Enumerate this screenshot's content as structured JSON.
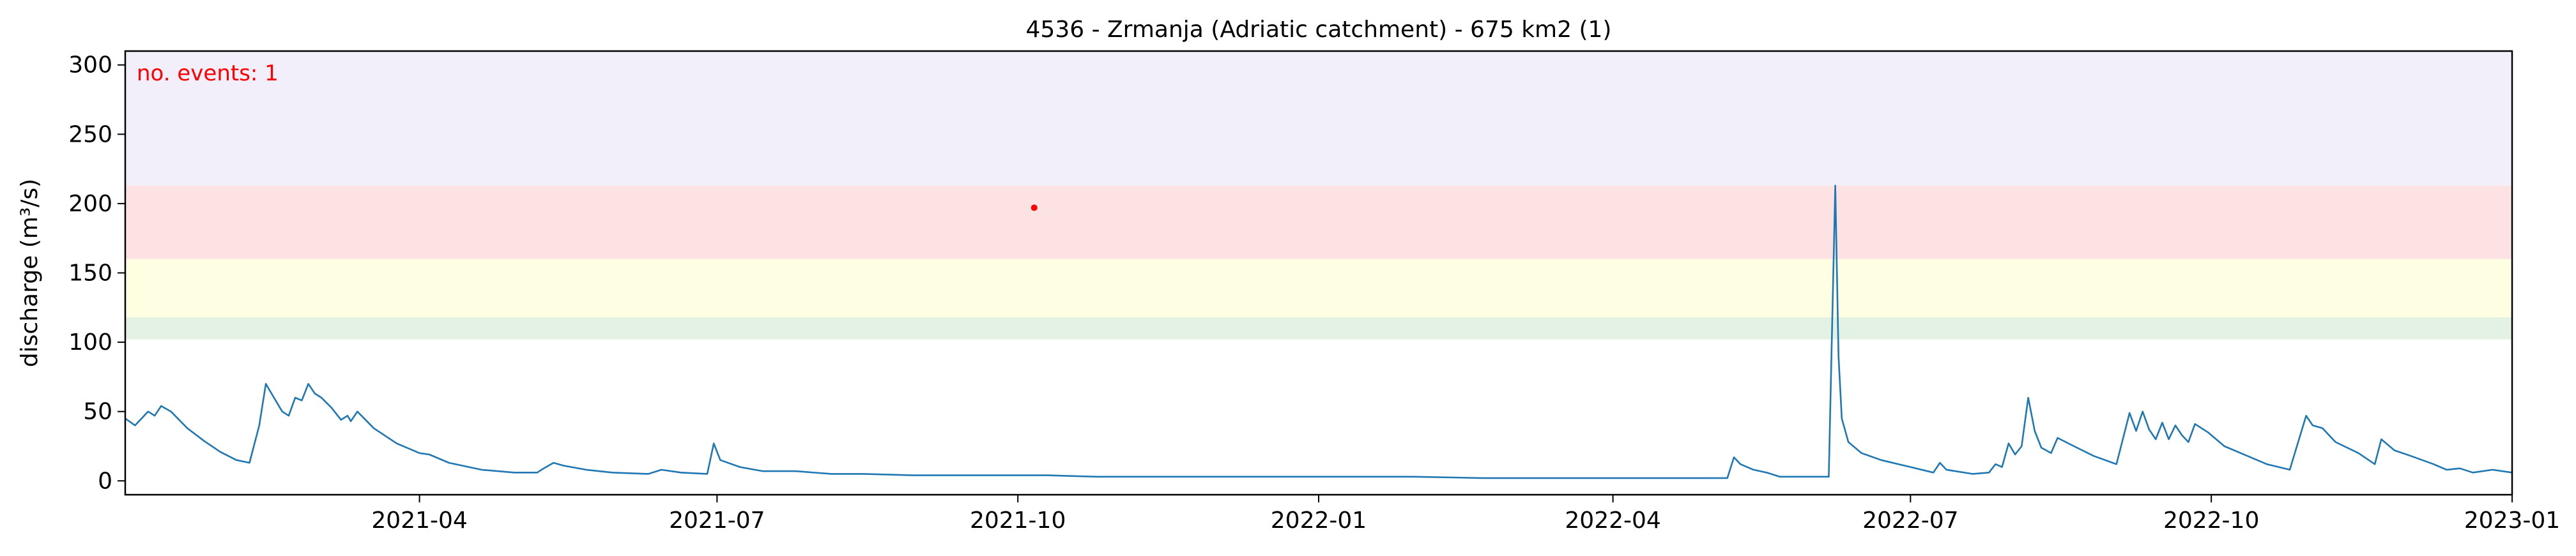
{
  "chart_data": {
    "type": "line",
    "title": "4536 - Zrmanja (Adriatic catchment) - 675 km2 (1)",
    "xlabel": "",
    "ylabel": "discharge (m³/s)",
    "xlim": [
      "2021-01-01",
      "2023-01-01"
    ],
    "ylim": [
      -10,
      310
    ],
    "grid": false,
    "legend": "none",
    "x_ticks": [
      "2021-04-01",
      "2021-07-01",
      "2021-10-01",
      "2022-01-01",
      "2022-04-01",
      "2022-07-01",
      "2022-10-01",
      "2023-01-01"
    ],
    "x_tick_labels": [
      "2021-04",
      "2021-07",
      "2021-10",
      "2022-01",
      "2022-04",
      "2022-07",
      "2022-10",
      "2023-01"
    ],
    "y_ticks": [
      0,
      50,
      100,
      150,
      200,
      250,
      300
    ],
    "y_tick_labels": [
      "0",
      "50",
      "100",
      "150",
      "200",
      "250",
      "300"
    ],
    "threshold_bands": [
      {
        "from": 102,
        "to": 118,
        "color": "#e4f2e4"
      },
      {
        "from": 118,
        "to": 160,
        "color": "#fefee3"
      },
      {
        "from": 160,
        "to": 213,
        "color": "#fde2e4"
      },
      {
        "from": 213,
        "to": 310,
        "color": "#f2eefa"
      }
    ],
    "series": [
      {
        "color": "#1f77b4",
        "points": [
          [
            "2021-01-01",
            45
          ],
          [
            "2021-01-04",
            40
          ],
          [
            "2021-01-08",
            50
          ],
          [
            "2021-01-10",
            47
          ],
          [
            "2021-01-12",
            54
          ],
          [
            "2021-01-15",
            50
          ],
          [
            "2021-01-20",
            38
          ],
          [
            "2021-01-25",
            29
          ],
          [
            "2021-01-30",
            21
          ],
          [
            "2021-02-04",
            15
          ],
          [
            "2021-02-08",
            13
          ],
          [
            "2021-02-11",
            40
          ],
          [
            "2021-02-13",
            70
          ],
          [
            "2021-02-15",
            62
          ],
          [
            "2021-02-18",
            50
          ],
          [
            "2021-02-20",
            47
          ],
          [
            "2021-02-22",
            60
          ],
          [
            "2021-02-24",
            58
          ],
          [
            "2021-02-26",
            70
          ],
          [
            "2021-02-28",
            63
          ],
          [
            "2021-03-02",
            60
          ],
          [
            "2021-03-05",
            53
          ],
          [
            "2021-03-08",
            44
          ],
          [
            "2021-03-10",
            47
          ],
          [
            "2021-03-11",
            43
          ],
          [
            "2021-03-13",
            50
          ],
          [
            "2021-03-18",
            38
          ],
          [
            "2021-03-25",
            27
          ],
          [
            "2021-04-01",
            20
          ],
          [
            "2021-04-04",
            19
          ],
          [
            "2021-04-10",
            13
          ],
          [
            "2021-04-20",
            8
          ],
          [
            "2021-04-30",
            6
          ],
          [
            "2021-05-07",
            6
          ],
          [
            "2021-05-09",
            9
          ],
          [
            "2021-05-12",
            13
          ],
          [
            "2021-05-15",
            11
          ],
          [
            "2021-05-22",
            8
          ],
          [
            "2021-05-30",
            6
          ],
          [
            "2021-06-10",
            5
          ],
          [
            "2021-06-14",
            8
          ],
          [
            "2021-06-20",
            6
          ],
          [
            "2021-06-28",
            5
          ],
          [
            "2021-06-30",
            27
          ],
          [
            "2021-07-02",
            15
          ],
          [
            "2021-07-08",
            10
          ],
          [
            "2021-07-15",
            7
          ],
          [
            "2021-07-25",
            7
          ],
          [
            "2021-08-05",
            5
          ],
          [
            "2021-08-15",
            5
          ],
          [
            "2021-08-30",
            4
          ],
          [
            "2021-09-10",
            4
          ],
          [
            "2021-09-25",
            4
          ],
          [
            "2021-10-10",
            4
          ],
          [
            "2021-10-25",
            3
          ],
          [
            "2021-11-10",
            3
          ],
          [
            "2021-11-30",
            3
          ],
          [
            "2021-12-20",
            3
          ],
          [
            "2022-01-10",
            3
          ],
          [
            "2022-01-30",
            3
          ],
          [
            "2022-02-20",
            2
          ],
          [
            "2022-03-10",
            2
          ],
          [
            "2022-04-01",
            2
          ],
          [
            "2022-04-20",
            2
          ],
          [
            "2022-05-06",
            2
          ],
          [
            "2022-05-08",
            17
          ],
          [
            "2022-05-10",
            12
          ],
          [
            "2022-05-14",
            8
          ],
          [
            "2022-05-18",
            6
          ],
          [
            "2022-05-22",
            3
          ],
          [
            "2022-06-06",
            3
          ],
          [
            "2022-06-08",
            213
          ],
          [
            "2022-06-09",
            90
          ],
          [
            "2022-06-10",
            45
          ],
          [
            "2022-06-12",
            28
          ],
          [
            "2022-06-16",
            20
          ],
          [
            "2022-06-22",
            15
          ],
          [
            "2022-07-01",
            10
          ],
          [
            "2022-07-08",
            6
          ],
          [
            "2022-07-10",
            13
          ],
          [
            "2022-07-12",
            8
          ],
          [
            "2022-07-20",
            5
          ],
          [
            "2022-07-25",
            6
          ],
          [
            "2022-07-27",
            12
          ],
          [
            "2022-07-29",
            10
          ],
          [
            "2022-07-31",
            27
          ],
          [
            "2022-08-02",
            19
          ],
          [
            "2022-08-04",
            25
          ],
          [
            "2022-08-06",
            60
          ],
          [
            "2022-08-08",
            36
          ],
          [
            "2022-08-10",
            24
          ],
          [
            "2022-08-13",
            20
          ],
          [
            "2022-08-15",
            31
          ],
          [
            "2022-08-20",
            25
          ],
          [
            "2022-08-26",
            18
          ],
          [
            "2022-09-02",
            12
          ],
          [
            "2022-09-06",
            49
          ],
          [
            "2022-09-08",
            36
          ],
          [
            "2022-09-10",
            50
          ],
          [
            "2022-09-12",
            37
          ],
          [
            "2022-09-14",
            30
          ],
          [
            "2022-09-16",
            42
          ],
          [
            "2022-09-18",
            30
          ],
          [
            "2022-09-20",
            40
          ],
          [
            "2022-09-22",
            33
          ],
          [
            "2022-09-24",
            28
          ],
          [
            "2022-09-26",
            41
          ],
          [
            "2022-09-30",
            35
          ],
          [
            "2022-10-05",
            25
          ],
          [
            "2022-10-12",
            18
          ],
          [
            "2022-10-18",
            12
          ],
          [
            "2022-10-25",
            8
          ],
          [
            "2022-10-30",
            47
          ],
          [
            "2022-11-01",
            40
          ],
          [
            "2022-11-04",
            38
          ],
          [
            "2022-11-08",
            28
          ],
          [
            "2022-11-15",
            20
          ],
          [
            "2022-11-20",
            12
          ],
          [
            "2022-11-22",
            30
          ],
          [
            "2022-11-26",
            22
          ],
          [
            "2022-12-01",
            18
          ],
          [
            "2022-12-08",
            12
          ],
          [
            "2022-12-12",
            8
          ],
          [
            "2022-12-16",
            9
          ],
          [
            "2022-12-20",
            6
          ],
          [
            "2022-12-26",
            8
          ],
          [
            "2023-01-01",
            6
          ]
        ]
      }
    ],
    "events": [
      {
        "x": "2021-10-06",
        "y": 197,
        "color": "#ff0000"
      }
    ],
    "annotations": [
      {
        "text": "no. events: 1",
        "color": "#ff0000",
        "position": "top-left"
      }
    ]
  }
}
